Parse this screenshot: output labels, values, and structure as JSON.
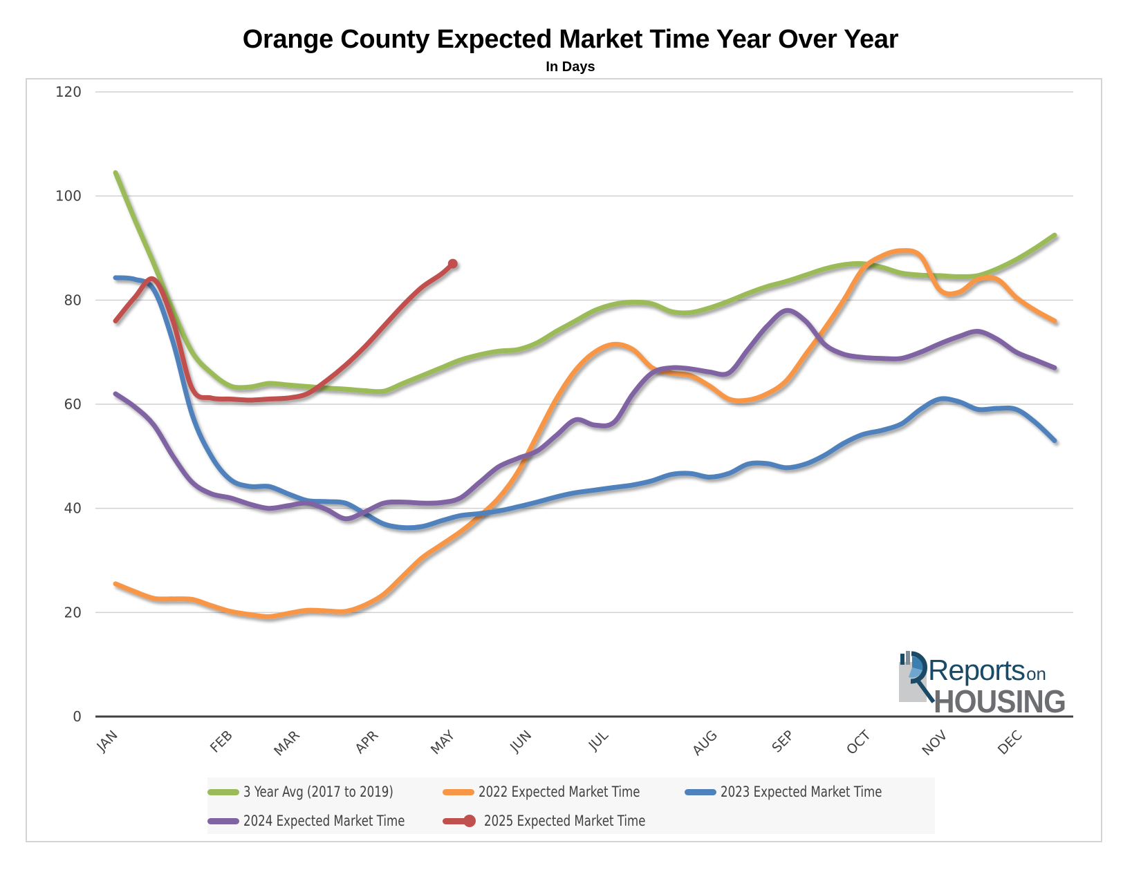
{
  "chart_data": {
    "type": "line",
    "title": "Orange County Expected Market Time Year Over Year",
    "subtitle": "In Days",
    "xlabel": "",
    "ylabel": "",
    "ylim": [
      0,
      120
    ],
    "yticks": [
      0,
      20,
      40,
      60,
      80,
      100,
      120
    ],
    "grid": true,
    "legend_position": "bottom",
    "x_unit": "week of year index",
    "xlim": [
      0,
      49
    ],
    "x": [
      0,
      1,
      2,
      3,
      4,
      5,
      6,
      7,
      8,
      9,
      10,
      11,
      12,
      13,
      14,
      15,
      16,
      17,
      18,
      19,
      20,
      21,
      22,
      23,
      24,
      25,
      26,
      27,
      28,
      29,
      30,
      31,
      32,
      33,
      34,
      35,
      36,
      37,
      38,
      39,
      40,
      41,
      42,
      43,
      44,
      45,
      46,
      47,
      48,
      49
    ],
    "x_tick_labels": [
      {
        "label": "JAN",
        "x": 0
      },
      {
        "label": "FEB",
        "x": 6
      },
      {
        "label": "MAR",
        "x": 9.5
      },
      {
        "label": "APR",
        "x": 13.6
      },
      {
        "label": "MAY",
        "x": 17.6
      },
      {
        "label": "JUN",
        "x": 21.6
      },
      {
        "label": "JUL",
        "x": 25.6
      },
      {
        "label": "AUG",
        "x": 31.3
      },
      {
        "label": "SEP",
        "x": 35.3
      },
      {
        "label": "OCT",
        "x": 39.3
      },
      {
        "label": "NOV",
        "x": 43.3
      },
      {
        "label": "DEC",
        "x": 47.2
      }
    ],
    "series": [
      {
        "name": "3 Year Avg (2017 to 2019)",
        "color": "#9bbb59",
        "values": [
          104.5,
          95.5,
          87,
          78,
          70,
          66,
          63.5,
          63.3,
          64,
          63.7,
          63.4,
          63.1,
          62.9,
          62.6,
          62.5,
          64,
          65.5,
          67,
          68.5,
          69.5,
          70.2,
          70.5,
          71.8,
          74,
          76,
          78,
          79.2,
          79.6,
          79.3,
          77.8,
          77.6,
          78.5,
          79.8,
          81.3,
          82.6,
          83.6,
          84.8,
          86,
          86.8,
          87,
          86.3,
          85.2,
          84.8,
          84.7,
          84.5,
          84.7,
          86,
          87.8,
          90,
          92.5
        ]
      },
      {
        "name": "2022 Expected Market Time",
        "color": "#f79646",
        "values": [
          25.5,
          24,
          22.7,
          22.6,
          22.5,
          21.3,
          20.2,
          19.6,
          19.2,
          19.8,
          20.4,
          20.3,
          20.2,
          21.4,
          23.5,
          27,
          30.5,
          33,
          35.5,
          38.5,
          42,
          47,
          54,
          61,
          66.5,
          70,
          71.5,
          70.5,
          67,
          66,
          65.5,
          63.5,
          61,
          60.8,
          62,
          64.5,
          69.5,
          74.5,
          80,
          86,
          88.5,
          89.5,
          88.5,
          82,
          81.5,
          84,
          84,
          80.5,
          78,
          76
        ]
      },
      {
        "name": "2023 Expected Market Time",
        "color": "#4f81bd",
        "values": [
          84.3,
          84,
          82,
          72,
          58,
          50,
          45.5,
          44.2,
          44.2,
          42.8,
          41.5,
          41.3,
          41,
          39,
          37,
          36.3,
          36.5,
          37.6,
          38.6,
          39,
          39.5,
          40.3,
          41.2,
          42.2,
          43,
          43.5,
          44,
          44.5,
          45.3,
          46.5,
          46.7,
          46,
          46.7,
          48.5,
          48.6,
          47.8,
          48.5,
          50.2,
          52.5,
          54.2,
          55,
          56.2,
          59,
          61,
          60.5,
          59,
          59.2,
          59,
          56.5,
          53
        ]
      },
      {
        "name": "2024 Expected Market Time",
        "color": "#8064a2",
        "values": [
          62,
          59.5,
          56,
          50,
          45,
          42.8,
          42,
          40.8,
          40,
          40.5,
          41,
          39.8,
          38,
          39.3,
          41,
          41.2,
          41,
          41.1,
          42,
          45,
          48,
          49.6,
          51,
          54,
          57,
          56,
          56.5,
          62,
          66,
          67,
          66.8,
          66.2,
          66,
          70.5,
          75,
          78,
          76,
          71.5,
          69.6,
          69,
          68.8,
          68.8,
          70,
          71.6,
          73,
          74,
          72.5,
          70,
          68.5,
          67
        ]
      },
      {
        "name": "2025 Expected Market Time",
        "color": "#c0504d",
        "marker_on_last": true,
        "x": [
          0,
          1,
          2,
          3,
          4,
          5,
          6,
          7,
          8,
          9,
          10,
          11,
          12,
          13,
          14,
          15,
          16,
          17,
          17.6
        ],
        "values": [
          76,
          80.5,
          84,
          76,
          63,
          61.2,
          61,
          60.8,
          61,
          61.2,
          62,
          64.5,
          67.5,
          71,
          75,
          79,
          82.5,
          85,
          87
        ]
      }
    ]
  },
  "logo": {
    "line1": "Reports",
    "line1_suffix": "on",
    "line2": "HOUSING"
  }
}
